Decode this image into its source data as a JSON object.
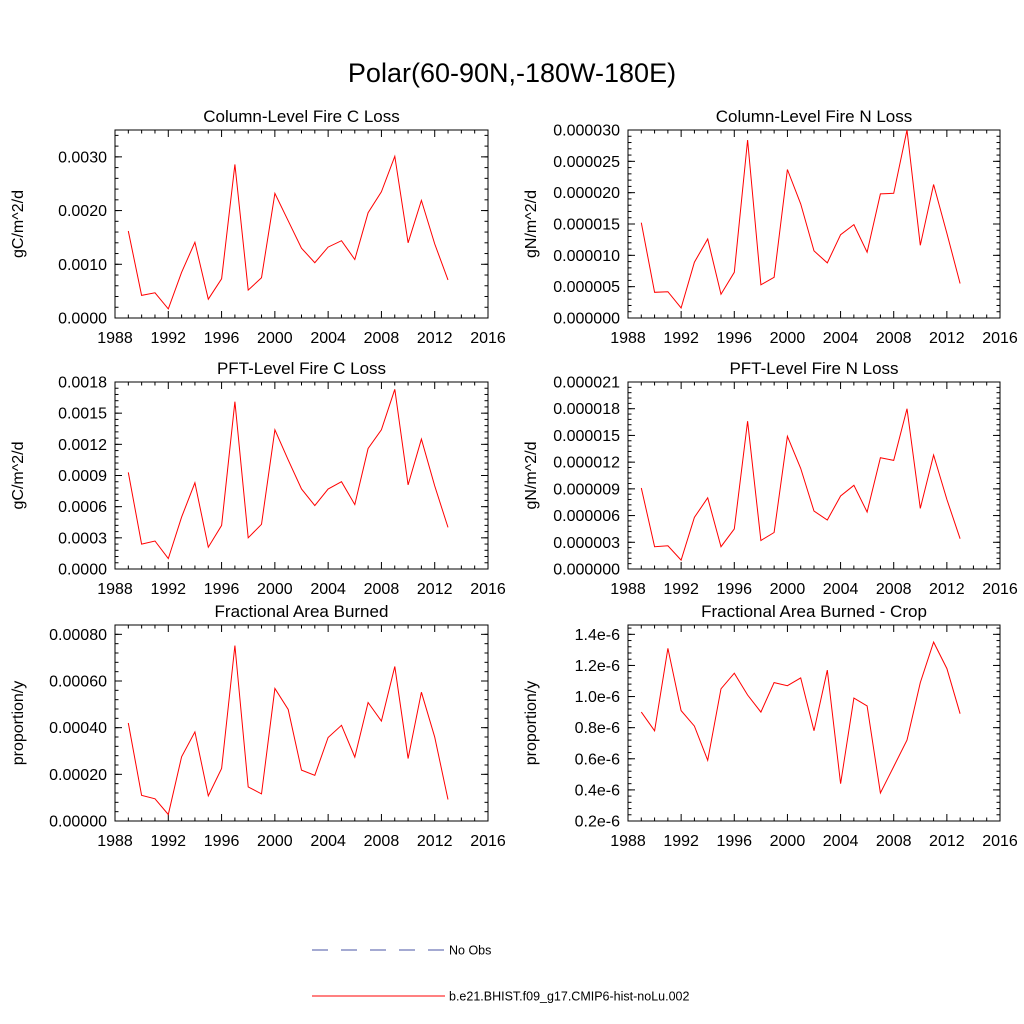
{
  "page": {
    "title": "Polar(60-90N,-180W-180E)"
  },
  "series_color": "#ff0000",
  "chart_data": [
    {
      "type": "line",
      "title": "Column-Level Fire C Loss",
      "ylabel": "gC/m^2/d",
      "xlim": [
        1988,
        2016
      ],
      "ylim": [
        0,
        0.0035
      ],
      "xticks": [
        "1988",
        "1992",
        "1996",
        "2000",
        "2004",
        "2008",
        "2012",
        "2016"
      ],
      "yticks": [
        "0.0000",
        "0.0010",
        "0.0020",
        "0.0030"
      ],
      "ytick_values": [
        0,
        0.001,
        0.002,
        0.003
      ],
      "x": [
        1989,
        1990,
        1991,
        1992,
        1993,
        1994,
        1995,
        1996,
        1997,
        1998,
        1999,
        2000,
        2001,
        2002,
        2003,
        2004,
        2005,
        2006,
        2007,
        2008,
        2009,
        2010,
        2011,
        2012,
        2013
      ],
      "values": [
        0.00162,
        0.00042,
        0.00047,
        0.00017,
        0.00085,
        0.00141,
        0.00035,
        0.00073,
        0.00286,
        0.00052,
        0.00075,
        0.00232,
        0.00181,
        0.0013,
        0.00103,
        0.00132,
        0.00144,
        0.00109,
        0.00196,
        0.00235,
        0.00301,
        0.0014,
        0.00219,
        0.00138,
        0.00071
      ]
    },
    {
      "type": "line",
      "title": "Column-Level Fire N Loss",
      "ylabel": "gN/m^2/d",
      "xlim": [
        1988,
        2016
      ],
      "ylim": [
        0,
        3e-05
      ],
      "xticks": [
        "1988",
        "1992",
        "1996",
        "2000",
        "2004",
        "2008",
        "2012",
        "2016"
      ],
      "yticks": [
        "0.000000",
        "0.000005",
        "0.000010",
        "0.000015",
        "0.000020",
        "0.000025",
        "0.000030"
      ],
      "ytick_values": [
        0,
        5e-06,
        1e-05,
        1.5e-05,
        2e-05,
        2.5e-05,
        3e-05
      ],
      "x": [
        1989,
        1990,
        1991,
        1992,
        1993,
        1994,
        1995,
        1996,
        1997,
        1998,
        1999,
        2000,
        2001,
        2002,
        2003,
        2004,
        2005,
        2006,
        2007,
        2008,
        2009,
        2010,
        2011,
        2012,
        2013
      ],
      "values": [
        1.52e-05,
        4.1e-06,
        4.2e-06,
        1.6e-06,
        8.9e-06,
        1.26e-05,
        3.8e-06,
        7.3e-06,
        2.84e-05,
        5.3e-06,
        6.5e-06,
        2.37e-05,
        1.82e-05,
        1.07e-05,
        8.8e-06,
        1.33e-05,
        1.49e-05,
        1.05e-05,
        1.98e-05,
        1.99e-05,
        3e-05,
        1.16e-05,
        2.13e-05,
        1.35e-05,
        5.5e-06
      ]
    },
    {
      "type": "line",
      "title": "PFT-Level Fire C Loss",
      "ylabel": "gC/m^2/d",
      "xlim": [
        1988,
        2016
      ],
      "ylim": [
        0,
        0.0018
      ],
      "xticks": [
        "1988",
        "1992",
        "1996",
        "2000",
        "2004",
        "2008",
        "2012",
        "2016"
      ],
      "yticks": [
        "0.0000",
        "0.0003",
        "0.0006",
        "0.0009",
        "0.0012",
        "0.0015",
        "0.0018"
      ],
      "ytick_values": [
        0,
        0.0003,
        0.0006,
        0.0009,
        0.0012,
        0.0015,
        0.0018
      ],
      "x": [
        1989,
        1990,
        1991,
        1992,
        1993,
        1994,
        1995,
        1996,
        1997,
        1998,
        1999,
        2000,
        2001,
        2002,
        2003,
        2004,
        2005,
        2006,
        2007,
        2008,
        2009,
        2010,
        2011,
        2012,
        2013
      ],
      "values": [
        0.00093,
        0.00024,
        0.00027,
        0.0001,
        0.0005,
        0.00083,
        0.00021,
        0.00042,
        0.00161,
        0.0003,
        0.00043,
        0.00134,
        0.00105,
        0.00077,
        0.00061,
        0.00077,
        0.00084,
        0.00062,
        0.00116,
        0.00134,
        0.00173,
        0.00081,
        0.00125,
        0.0008,
        0.0004
      ]
    },
    {
      "type": "line",
      "title": "PFT-Level Fire N Loss",
      "ylabel": "gN/m^2/d",
      "xlim": [
        1988,
        2016
      ],
      "ylim": [
        0,
        2.1e-05
      ],
      "xticks": [
        "1988",
        "1992",
        "1996",
        "2000",
        "2004",
        "2008",
        "2012",
        "2016"
      ],
      "yticks": [
        "0.000000",
        "0.000003",
        "0.000006",
        "0.000009",
        "0.000012",
        "0.000015",
        "0.000018",
        "0.000021"
      ],
      "ytick_values": [
        0,
        3e-06,
        6e-06,
        9e-06,
        1.2e-05,
        1.5e-05,
        1.8e-05,
        2.1e-05
      ],
      "x": [
        1989,
        1990,
        1991,
        1992,
        1993,
        1994,
        1995,
        1996,
        1997,
        1998,
        1999,
        2000,
        2001,
        2002,
        2003,
        2004,
        2005,
        2006,
        2007,
        2008,
        2009,
        2010,
        2011,
        2012,
        2013
      ],
      "values": [
        9.1e-06,
        2.5e-06,
        2.6e-06,
        1e-06,
        5.8e-06,
        8e-06,
        2.5e-06,
        4.5e-06,
        1.66e-05,
        3.2e-06,
        4.1e-06,
        1.49e-05,
        1.13e-05,
        6.5e-06,
        5.5e-06,
        8.2e-06,
        9.4e-06,
        6.4e-06,
        1.25e-05,
        1.22e-05,
        1.8e-05,
        6.8e-06,
        1.28e-05,
        7.8e-06,
        3.4e-06
      ]
    },
    {
      "type": "line",
      "title": "Fractional Area Burned",
      "ylabel": "proportion/y",
      "xlim": [
        1988,
        2016
      ],
      "ylim": [
        0,
        0.00084
      ],
      "xticks": [
        "1988",
        "1992",
        "1996",
        "2000",
        "2004",
        "2008",
        "2012",
        "2016"
      ],
      "yticks": [
        "0.00000",
        "0.00020",
        "0.00040",
        "0.00060",
        "0.00080"
      ],
      "ytick_values": [
        0,
        0.0002,
        0.0004,
        0.0006,
        0.0008
      ],
      "x": [
        1989,
        1990,
        1991,
        1992,
        1993,
        1994,
        1995,
        1996,
        1997,
        1998,
        1999,
        2000,
        2001,
        2002,
        2003,
        2004,
        2005,
        2006,
        2007,
        2008,
        2009,
        2010,
        2011,
        2012,
        2013
      ],
      "values": [
        0.00042,
        0.00011,
        9.5e-05,
        2.8e-05,
        0.000275,
        0.000382,
        0.000108,
        0.000225,
        0.000752,
        0.000146,
        0.000116,
        0.000568,
        0.000478,
        0.000218,
        0.000196,
        0.000358,
        0.00041,
        0.000274,
        0.000508,
        0.000428,
        0.000662,
        0.000268,
        0.000552,
        0.00036,
        9.2e-05
      ]
    },
    {
      "type": "line",
      "title": "Fractional Area Burned - Crop",
      "ylabel": "proportion/y",
      "xlim": [
        1988,
        2016
      ],
      "ylim": [
        0.2,
        1.46
      ],
      "y_unit_note": "values in 1e-6",
      "xticks": [
        "1988",
        "1992",
        "1996",
        "2000",
        "2004",
        "2008",
        "2012",
        "2016"
      ],
      "yticks": [
        "0.2e-6",
        "0.4e-6",
        "0.6e-6",
        "0.8e-6",
        "1.0e-6",
        "1.2e-6",
        "1.4e-6"
      ],
      "ytick_values": [
        0.2,
        0.4,
        0.6,
        0.8,
        1.0,
        1.2,
        1.4
      ],
      "x": [
        1989,
        1990,
        1991,
        1992,
        1993,
        1994,
        1995,
        1996,
        1997,
        1998,
        1999,
        2000,
        2001,
        2002,
        2003,
        2004,
        2005,
        2006,
        2007,
        2008,
        2009,
        2010,
        2011,
        2012,
        2013
      ],
      "values": [
        0.9,
        0.78,
        1.31,
        0.91,
        0.81,
        0.59,
        1.05,
        1.15,
        1.01,
        0.9,
        1.09,
        1.07,
        1.12,
        0.78,
        1.17,
        0.44,
        0.99,
        0.94,
        0.38,
        0.55,
        0.72,
        1.09,
        1.35,
        1.18,
        0.89
      ]
    }
  ],
  "legend": [
    {
      "label": "No Obs",
      "style": "dashed",
      "color": "#4a55a6"
    },
    {
      "label": "b.e21.BHIST.f09_g17.CMIP6-hist-noLu.002",
      "style": "solid",
      "color": "#ff0000"
    }
  ]
}
